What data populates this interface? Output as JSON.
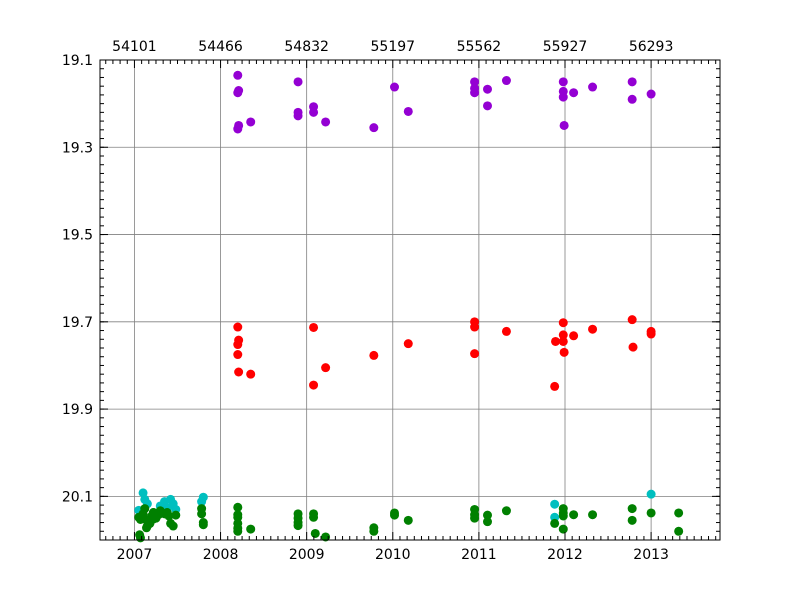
{
  "chart_data": {
    "type": "scatter",
    "title": "",
    "xlabel": "",
    "ylabel": "",
    "xlim": [
      2006.6,
      2013.8
    ],
    "ylim": [
      20.2,
      19.1
    ],
    "y_inverted": true,
    "grid": true,
    "bottom_ticks": [
      2007,
      2008,
      2009,
      2010,
      2011,
      2012,
      2013
    ],
    "bottom_tick_labels": [
      "2007",
      "2008",
      "2009",
      "2010",
      "2011",
      "2012",
      "2013"
    ],
    "top_ticks": [
      2007,
      2008,
      2009,
      2010,
      2011,
      2012,
      2013
    ],
    "top_tick_labels": [
      "54101",
      "54466",
      "54832",
      "55197",
      "55562",
      "55927",
      "56293"
    ],
    "y_ticks": [
      19.1,
      19.3,
      19.5,
      19.7,
      19.9,
      20.1
    ],
    "y_tick_labels": [
      "19.1",
      "19.3",
      "19.5",
      "19.7",
      "19.9",
      "20.1"
    ],
    "series": [
      {
        "color": "#9400d3",
        "points": [
          [
            2008.2,
            19.135
          ],
          [
            2008.21,
            19.17
          ],
          [
            2008.2,
            19.175
          ],
          [
            2008.21,
            19.25
          ],
          [
            2008.2,
            19.258
          ],
          [
            2008.35,
            19.242
          ],
          [
            2008.9,
            19.15
          ],
          [
            2008.9,
            19.22
          ],
          [
            2008.9,
            19.228
          ],
          [
            2009.08,
            19.207
          ],
          [
            2009.08,
            19.22
          ],
          [
            2009.22,
            19.242
          ],
          [
            2009.78,
            19.255
          ],
          [
            2010.02,
            19.162
          ],
          [
            2010.18,
            19.218
          ],
          [
            2010.95,
            19.15
          ],
          [
            2010.95,
            19.165
          ],
          [
            2010.95,
            19.175
          ],
          [
            2011.1,
            19.167
          ],
          [
            2011.1,
            19.205
          ],
          [
            2011.32,
            19.147
          ],
          [
            2011.98,
            19.15
          ],
          [
            2011.98,
            19.172
          ],
          [
            2011.98,
            19.185
          ],
          [
            2012.1,
            19.175
          ],
          [
            2012.32,
            19.162
          ],
          [
            2011.99,
            19.25
          ],
          [
            2012.78,
            19.15
          ],
          [
            2012.78,
            19.19
          ],
          [
            2013.0,
            19.178
          ]
        ]
      },
      {
        "color": "#ff0000",
        "points": [
          [
            2008.2,
            19.712
          ],
          [
            2008.21,
            19.742
          ],
          [
            2008.2,
            19.752
          ],
          [
            2008.2,
            19.775
          ],
          [
            2008.21,
            19.815
          ],
          [
            2008.35,
            19.82
          ],
          [
            2009.08,
            19.713
          ],
          [
            2009.08,
            19.845
          ],
          [
            2009.22,
            19.805
          ],
          [
            2009.78,
            19.777
          ],
          [
            2010.18,
            19.75
          ],
          [
            2010.95,
            19.7
          ],
          [
            2010.95,
            19.712
          ],
          [
            2010.95,
            19.773
          ],
          [
            2011.32,
            19.722
          ],
          [
            2011.88,
            19.848
          ],
          [
            2011.89,
            19.745
          ],
          [
            2011.98,
            19.702
          ],
          [
            2011.98,
            19.73
          ],
          [
            2011.98,
            19.745
          ],
          [
            2011.99,
            19.77
          ],
          [
            2012.1,
            19.732
          ],
          [
            2012.32,
            19.717
          ],
          [
            2012.78,
            19.695
          ],
          [
            2012.79,
            19.758
          ],
          [
            2013.0,
            19.722
          ],
          [
            2013.0,
            19.728
          ]
        ]
      },
      {
        "color": "#00bfbf",
        "points": [
          [
            2007.05,
            20.132
          ],
          [
            2007.1,
            20.092
          ],
          [
            2007.12,
            20.107
          ],
          [
            2007.15,
            20.117
          ],
          [
            2007.22,
            20.137
          ],
          [
            2007.3,
            20.122
          ],
          [
            2007.35,
            20.112
          ],
          [
            2007.38,
            20.127
          ],
          [
            2007.42,
            20.107
          ],
          [
            2007.45,
            20.117
          ],
          [
            2007.48,
            20.13
          ],
          [
            2007.8,
            20.102
          ],
          [
            2007.78,
            20.112
          ],
          [
            2011.88,
            20.118
          ],
          [
            2011.88,
            20.148
          ],
          [
            2013.0,
            20.095
          ]
        ]
      },
      {
        "color": "#008000",
        "points": [
          [
            2007.05,
            20.148
          ],
          [
            2007.07,
            20.153
          ],
          [
            2007.1,
            20.14
          ],
          [
            2007.12,
            20.152
          ],
          [
            2007.15,
            20.168
          ],
          [
            2007.18,
            20.162
          ],
          [
            2007.2,
            20.145
          ],
          [
            2007.22,
            20.137
          ],
          [
            2007.25,
            20.15
          ],
          [
            2007.28,
            20.142
          ],
          [
            2007.3,
            20.133
          ],
          [
            2007.32,
            20.138
          ],
          [
            2007.35,
            20.14
          ],
          [
            2007.38,
            20.137
          ],
          [
            2007.4,
            20.145
          ],
          [
            2007.42,
            20.162
          ],
          [
            2007.45,
            20.168
          ],
          [
            2007.48,
            20.143
          ],
          [
            2007.12,
            20.128
          ],
          [
            2007.14,
            20.172
          ],
          [
            2007.06,
            20.188
          ],
          [
            2007.07,
            20.195
          ],
          [
            2007.22,
            20.152
          ],
          [
            2007.78,
            20.128
          ],
          [
            2007.78,
            20.14
          ],
          [
            2007.8,
            20.16
          ],
          [
            2007.8,
            20.165
          ],
          [
            2008.2,
            20.125
          ],
          [
            2008.2,
            20.142
          ],
          [
            2008.2,
            20.148
          ],
          [
            2008.2,
            20.162
          ],
          [
            2008.2,
            20.173
          ],
          [
            2008.2,
            20.18
          ],
          [
            2008.35,
            20.175
          ],
          [
            2008.9,
            20.14
          ],
          [
            2008.9,
            20.15
          ],
          [
            2008.9,
            20.16
          ],
          [
            2008.9,
            20.167
          ],
          [
            2009.08,
            20.14
          ],
          [
            2009.08,
            20.148
          ],
          [
            2009.1,
            20.185
          ],
          [
            2009.22,
            20.193
          ],
          [
            2009.78,
            20.172
          ],
          [
            2009.78,
            20.18
          ],
          [
            2010.02,
            20.138
          ],
          [
            2010.02,
            20.143
          ],
          [
            2010.18,
            20.155
          ],
          [
            2010.95,
            20.13
          ],
          [
            2010.95,
            20.142
          ],
          [
            2010.95,
            20.15
          ],
          [
            2011.1,
            20.143
          ],
          [
            2011.1,
            20.158
          ],
          [
            2011.32,
            20.133
          ],
          [
            2011.88,
            20.162
          ],
          [
            2011.98,
            20.128
          ],
          [
            2011.98,
            20.138
          ],
          [
            2011.98,
            20.145
          ],
          [
            2011.98,
            20.175
          ],
          [
            2012.1,
            20.142
          ],
          [
            2012.32,
            20.142
          ],
          [
            2012.78,
            20.128
          ],
          [
            2012.78,
            20.155
          ],
          [
            2013.0,
            20.138
          ],
          [
            2013.32,
            20.138
          ],
          [
            2013.32,
            20.18
          ]
        ]
      }
    ]
  }
}
